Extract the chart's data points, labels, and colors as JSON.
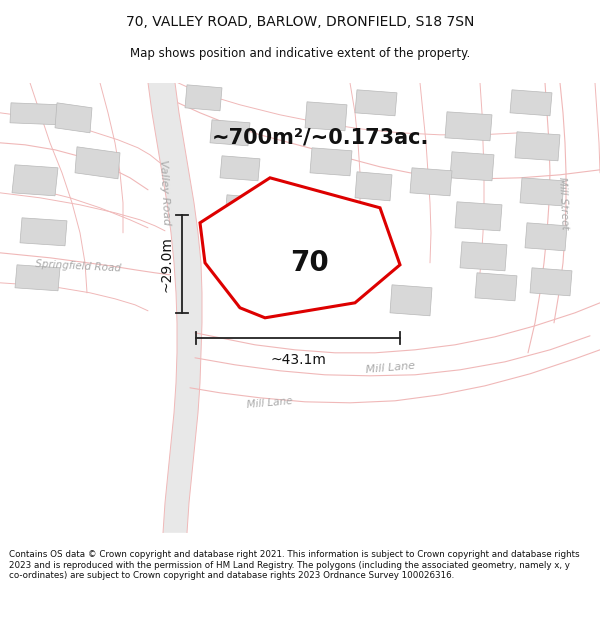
{
  "title_line1": "70, VALLEY ROAD, BARLOW, DRONFIELD, S18 7SN",
  "title_line2": "Map shows position and indicative extent of the property.",
  "area_text": "~700m²/~0.173ac.",
  "property_number": "70",
  "dim_width": "~43.1m",
  "dim_height": "~29.0m",
  "footer_text": "Contains OS data © Crown copyright and database right 2021. This information is subject to Crown copyright and database rights 2023 and is reproduced with the permission of HM Land Registry. The polygons (including the associated geometry, namely x, y co-ordinates) are subject to Crown copyright and database rights 2023 Ordnance Survey 100026316.",
  "background_color": "#ffffff",
  "map_bg_color": "#ffffff",
  "road_fill_color": "#e8e8e8",
  "road_outline_color": "#f0b8b8",
  "building_color": "#d8d8d8",
  "building_edge_color": "#b8b8b8",
  "property_fill": "#ffffff",
  "property_edge_color": "#dd0000",
  "dim_line_color": "#222222",
  "road_label_color": "#aaaaaa",
  "valley_road_label": "Valley Road",
  "springfield_road_label": "Springfield Road",
  "mill_lane_label1": "Mill Lane",
  "mill_street_label": "Mill Street"
}
